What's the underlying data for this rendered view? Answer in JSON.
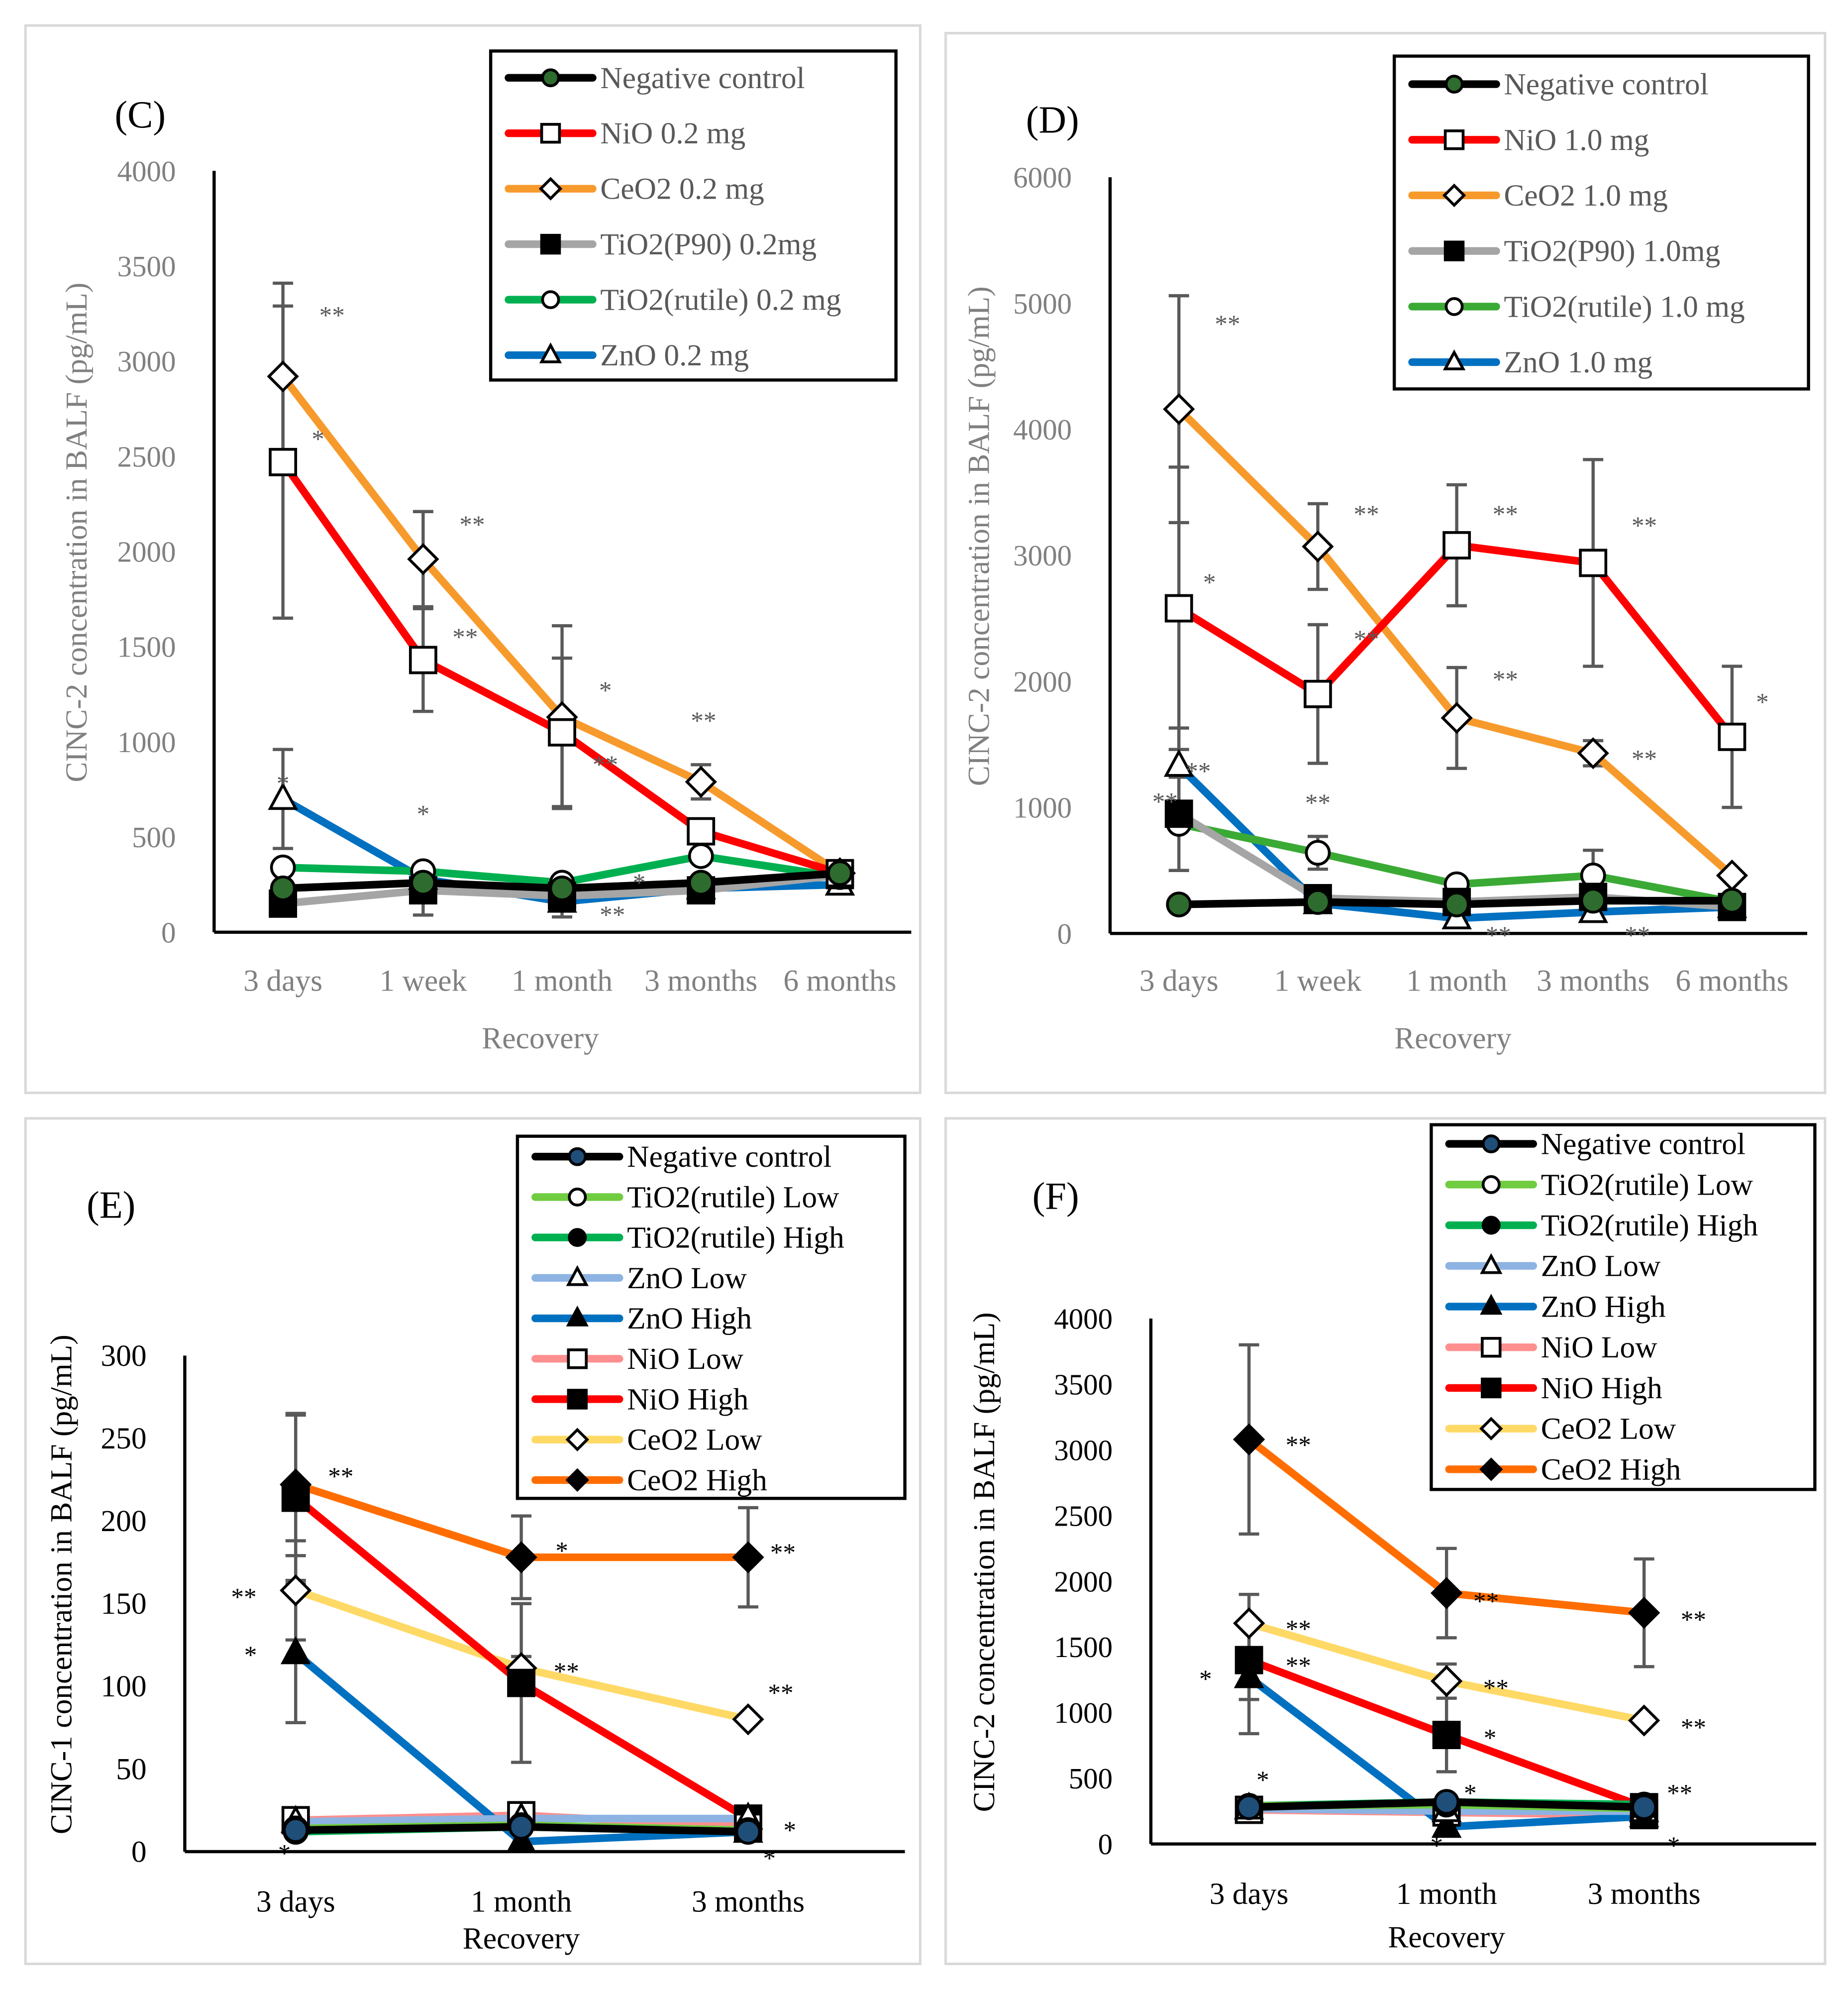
{
  "chart_data": [
    {
      "panel": "(C)",
      "type": "line",
      "ylabel": "CINC-2 concentration in BALF (pg/mL)",
      "xlabel": "Recovery",
      "ylim": [
        0,
        4000
      ],
      "yticks": [
        0,
        500,
        1000,
        1500,
        2000,
        2500,
        3000,
        3500,
        4000
      ],
      "categories": [
        "3 days",
        "1 week",
        "1 month",
        "3 months",
        "6 months"
      ],
      "axis_label_color": "#808080",
      "legend_placement": "top-right",
      "series": [
        {
          "name": "Negative control",
          "color": "#000000",
          "marker": "circle",
          "marker_fill": "#2e6b2e",
          "values": [
            230,
            260,
            230,
            260,
            310
          ],
          "err": [
            null,
            null,
            null,
            null,
            null
          ]
        },
        {
          "name": "NiO 0.2 mg",
          "color": "#ff0000",
          "marker": "square",
          "marker_fill": "#ffffff",
          "values": [
            2470,
            1430,
            1050,
            530,
            310
          ],
          "err": [
            820,
            270,
            390,
            null,
            null
          ]
        },
        {
          "name": "CeO2 0.2 mg",
          "color": "#f79a2c",
          "marker": "diamond",
          "marker_fill": "#ffffff",
          "values": [
            2920,
            1960,
            1130,
            790,
            310
          ],
          "err": [
            490,
            250,
            480,
            90,
            null
          ]
        },
        {
          "name": "TiO2(P90) 0.2mg",
          "color": "#a5a5a5",
          "marker": "square",
          "marker_fill": "#000000",
          "values": [
            150,
            220,
            190,
            220,
            300
          ],
          "err": [
            null,
            130,
            null,
            null,
            null
          ]
        },
        {
          "name": "TiO2(rutile) 0.2 mg",
          "color": "#00b050",
          "marker": "circle",
          "marker_fill": "#ffffff",
          "values": [
            340,
            320,
            260,
            400,
            290
          ],
          "err": [
            null,
            null,
            null,
            null,
            null
          ]
        },
        {
          "name": "ZnO 0.2 mg",
          "color": "#0070c0",
          "marker": "triangle",
          "marker_fill": "#ffffff",
          "values": [
            700,
            280,
            160,
            230,
            250
          ],
          "err": [
            260,
            null,
            80,
            null,
            null
          ]
        }
      ],
      "annotations": [
        {
          "x": 0.35,
          "y": 3250,
          "text": "**"
        },
        {
          "x": 0.25,
          "y": 2600,
          "text": "*"
        },
        {
          "x": 1.35,
          "y": 2150,
          "text": "**"
        },
        {
          "x": 1.3,
          "y": 1560,
          "text": "**"
        },
        {
          "x": 2.3,
          "y": 1280,
          "text": "*"
        },
        {
          "x": 3.0,
          "y": 1120,
          "text": "**"
        },
        {
          "x": 2.3,
          "y": 890,
          "text": "**"
        },
        {
          "x": 0.0,
          "y": 790,
          "text": "*"
        },
        {
          "x": 1.0,
          "y": 630,
          "text": "*"
        },
        {
          "x": 2.3,
          "y": 270,
          "text": "*"
        },
        {
          "x": 2.35,
          "y": 100,
          "text": "**"
        }
      ]
    },
    {
      "panel": "(D)",
      "type": "line",
      "ylabel": "CINC-2 concentration in BALF (pg/mL)",
      "xlabel": "Recovery",
      "ylim": [
        0,
        6000
      ],
      "yticks": [
        0,
        1000,
        2000,
        3000,
        4000,
        5000,
        6000
      ],
      "categories": [
        "3 days",
        "1 week",
        "1 month",
        "3 months",
        "6 months"
      ],
      "axis_label_color": "#808080",
      "legend_placement": "top-right",
      "series": [
        {
          "name": "Negative control",
          "color": "#000000",
          "marker": "circle",
          "marker_fill": "#2e6b2e",
          "values": [
            230,
            250,
            230,
            260,
            260
          ],
          "err": [
            null,
            null,
            null,
            null,
            null
          ]
        },
        {
          "name": "NiO 1.0 mg",
          "color": "#ff0000",
          "marker": "square",
          "marker_fill": "#ffffff",
          "values": [
            2580,
            1900,
            3080,
            2940,
            1560
          ],
          "err": [
            1120,
            550,
            480,
            820,
            560
          ]
        },
        {
          "name": "CeO2 1.0 mg",
          "color": "#f79a2c",
          "marker": "diamond",
          "marker_fill": "#ffffff",
          "values": [
            4160,
            3070,
            1710,
            1430,
            460
          ],
          "err": [
            900,
            340,
            400,
            100,
            null
          ]
        },
        {
          "name": "TiO2(P90) 1.0mg",
          "color": "#a5a5a5",
          "marker": "square",
          "marker_fill": "#000000",
          "values": [
            950,
            280,
            250,
            290,
            210
          ],
          "err": [
            null,
            null,
            null,
            null,
            null
          ]
        },
        {
          "name": "TiO2(rutile) 1.0 mg",
          "color": "#3aaa35",
          "marker": "circle",
          "marker_fill": "#ffffff",
          "values": [
            870,
            640,
            390,
            460,
            250
          ],
          "err": [
            370,
            130,
            null,
            200,
            null
          ]
        },
        {
          "name": "ZnO 1.0 mg",
          "color": "#0070c0",
          "marker": "triangle",
          "marker_fill": "#ffffff",
          "values": [
            1330,
            240,
            120,
            170,
            210
          ],
          "err": [
            300,
            null,
            null,
            null,
            null
          ]
        }
      ],
      "annotations": [
        {
          "x": 0.35,
          "y": 4850,
          "text": "**"
        },
        {
          "x": 0.22,
          "y": 2800,
          "text": "*"
        },
        {
          "x": 1.35,
          "y": 3340,
          "text": "**"
        },
        {
          "x": 1.35,
          "y": 2350,
          "text": "**"
        },
        {
          "x": 2.35,
          "y": 3340,
          "text": "**"
        },
        {
          "x": 2.35,
          "y": 2030,
          "text": "**"
        },
        {
          "x": 3.35,
          "y": 3250,
          "text": "**"
        },
        {
          "x": 3.35,
          "y": 1400,
          "text": "**"
        },
        {
          "x": 4.2,
          "y": 1850,
          "text": "*"
        },
        {
          "x": 0.0,
          "y": 1300,
          "text": "**"
        },
        {
          "x": -0.1,
          "y": 1060,
          "text": "**"
        },
        {
          "x": 1.0,
          "y": 1050,
          "text": "**"
        },
        {
          "x": 2.3,
          "y": 0,
          "text": "**"
        },
        {
          "x": 3.3,
          "y": 0,
          "text": "**"
        }
      ]
    },
    {
      "panel": "(E)",
      "type": "line",
      "ylabel": "CINC-1 concentration in BALF (pg/mL)",
      "xlabel": "Recovery",
      "ylim": [
        0,
        300
      ],
      "yticks": [
        0,
        50,
        100,
        150,
        200,
        250,
        300
      ],
      "categories": [
        "3 days",
        "1 month",
        "3 months"
      ],
      "axis_label_color": "#000000",
      "legend_placement": "top-right",
      "series": [
        {
          "name": "Negative control",
          "color": "#000000",
          "marker": "circle",
          "marker_fill": "#1f4e79",
          "values": [
            13,
            15,
            12
          ],
          "err": [
            null,
            null,
            null
          ]
        },
        {
          "name": "TiO2(rutile) Low",
          "color": "#70cc40",
          "marker": "circle",
          "marker_fill": "#ffffff",
          "values": [
            14,
            16,
            13
          ],
          "err": [
            null,
            null,
            null
          ]
        },
        {
          "name": "TiO2(rutile) High",
          "color": "#00b050",
          "marker": "circle",
          "marker_fill": "#000000",
          "values": [
            12,
            15,
            12
          ],
          "err": [
            null,
            null,
            null
          ]
        },
        {
          "name": "ZnO Low",
          "color": "#8db3e2",
          "marker": "triangle",
          "marker_fill": "#ffffff",
          "values": [
            18,
            20,
            20
          ],
          "err": [
            null,
            null,
            null
          ]
        },
        {
          "name": "ZnO High",
          "color": "#0070c0",
          "marker": "triangle",
          "marker_fill": "#000000",
          "values": [
            120,
            6,
            12
          ],
          "err": [
            42,
            null,
            null
          ]
        },
        {
          "name": "NiO Low",
          "color": "#ff8f8f",
          "marker": "square",
          "marker_fill": "#ffffff",
          "values": [
            19,
            22,
            15
          ],
          "err": [
            null,
            null,
            null
          ]
        },
        {
          "name": "NiO High",
          "color": "#ff0000",
          "marker": "square",
          "marker_fill": "#000000",
          "values": [
            214,
            102,
            20
          ],
          "err": [
            50,
            48,
            null
          ]
        },
        {
          "name": "CeO2 Low",
          "color": "#ffd966",
          "marker": "diamond",
          "marker_fill": "#ffffff",
          "values": [
            158,
            111,
            80
          ],
          "err": [
            30,
            7,
            null
          ]
        },
        {
          "name": "CeO2 High",
          "color": "#ff6d00",
          "marker": "diamond",
          "marker_fill": "#000000",
          "values": [
            222,
            178,
            178
          ],
          "err": [
            43,
            25,
            30
          ]
        }
      ],
      "annotations": [
        {
          "x": 0.2,
          "y": 228,
          "text": "**"
        },
        {
          "x": -0.23,
          "y": 155,
          "text": "**"
        },
        {
          "x": -0.2,
          "y": 120,
          "text": "*"
        },
        {
          "x": 1.18,
          "y": 183,
          "text": "*"
        },
        {
          "x": 1.2,
          "y": 110,
          "text": "**"
        },
        {
          "x": 2.16,
          "y": 182,
          "text": "**"
        },
        {
          "x": 2.15,
          "y": 97,
          "text": "**"
        },
        {
          "x": 2.15,
          "y": 14,
          "text": "*"
        },
        {
          "x": 2.1,
          "y": -3,
          "text": "*"
        },
        {
          "x": -0.05,
          "y": 0,
          "text": "*"
        }
      ]
    },
    {
      "panel": "(F)",
      "type": "line",
      "ylabel": "CINC-2 concentration in BALF (pg/mL)",
      "xlabel": "Recovery",
      "ylim": [
        0,
        4000
      ],
      "yticks": [
        0,
        500,
        1000,
        1500,
        2000,
        2500,
        3000,
        3500,
        4000
      ],
      "categories": [
        "3 days",
        "1 month",
        "3 months"
      ],
      "axis_label_color": "#000000",
      "legend_placement": "top-right",
      "series": [
        {
          "name": "Negative control",
          "color": "#000000",
          "marker": "circle",
          "marker_fill": "#1f4e79",
          "values": [
            280,
            320,
            280
          ],
          "err": [
            null,
            null,
            null
          ]
        },
        {
          "name": "TiO2(rutile) Low",
          "color": "#70cc40",
          "marker": "circle",
          "marker_fill": "#ffffff",
          "values": [
            290,
            300,
            270
          ],
          "err": [
            null,
            null,
            null
          ]
        },
        {
          "name": "TiO2(rutile) High",
          "color": "#00b050",
          "marker": "circle",
          "marker_fill": "#000000",
          "values": [
            290,
            320,
            300
          ],
          "err": [
            null,
            null,
            null
          ]
        },
        {
          "name": "ZnO Low",
          "color": "#8db3e2",
          "marker": "triangle",
          "marker_fill": "#ffffff",
          "values": [
            270,
            250,
            250
          ],
          "err": [
            null,
            null,
            null
          ]
        },
        {
          "name": "ZnO High",
          "color": "#0070c0",
          "marker": "triangle",
          "marker_fill": "#000000",
          "values": [
            1270,
            130,
            210
          ],
          "err": [
            430,
            null,
            null
          ]
        },
        {
          "name": "NiO Low",
          "color": "#ff8f8f",
          "marker": "square",
          "marker_fill": "#ffffff",
          "values": [
            260,
            240,
            220
          ],
          "err": [
            null,
            null,
            null
          ]
        },
        {
          "name": "NiO High",
          "color": "#ff0000",
          "marker": "square",
          "marker_fill": "#000000",
          "values": [
            1400,
            830,
            280
          ],
          "err": [
            300,
            280,
            null
          ]
        },
        {
          "name": "CeO2 Low",
          "color": "#ffd966",
          "marker": "diamond",
          "marker_fill": "#ffffff",
          "values": [
            1680,
            1240,
            940
          ],
          "err": [
            220,
            130,
            null
          ]
        },
        {
          "name": "CeO2 High",
          "color": "#ff6d00",
          "marker": "diamond",
          "marker_fill": "#000000",
          "values": [
            3080,
            1910,
            1760
          ],
          "err": [
            720,
            340,
            410
          ]
        }
      ],
      "annotations": [
        {
          "x": 0.25,
          "y": 3050,
          "text": "**"
        },
        {
          "x": 0.25,
          "y": 1650,
          "text": "**"
        },
        {
          "x": 0.25,
          "y": 1370,
          "text": "**"
        },
        {
          "x": -0.22,
          "y": 1270,
          "text": "*"
        },
        {
          "x": 0.07,
          "y": 500,
          "text": "*"
        },
        {
          "x": 1.2,
          "y": 1860,
          "text": "**"
        },
        {
          "x": 1.25,
          "y": 1200,
          "text": "**"
        },
        {
          "x": 1.22,
          "y": 820,
          "text": "*"
        },
        {
          "x": 1.12,
          "y": 400,
          "text": "*"
        },
        {
          "x": 2.25,
          "y": 1720,
          "text": "**"
        },
        {
          "x": 2.25,
          "y": 900,
          "text": "**"
        },
        {
          "x": 2.18,
          "y": 400,
          "text": "**"
        },
        {
          "x": 2.15,
          "y": 0,
          "text": "*"
        },
        {
          "x": 0.95,
          "y": 0,
          "text": "*"
        }
      ]
    }
  ]
}
